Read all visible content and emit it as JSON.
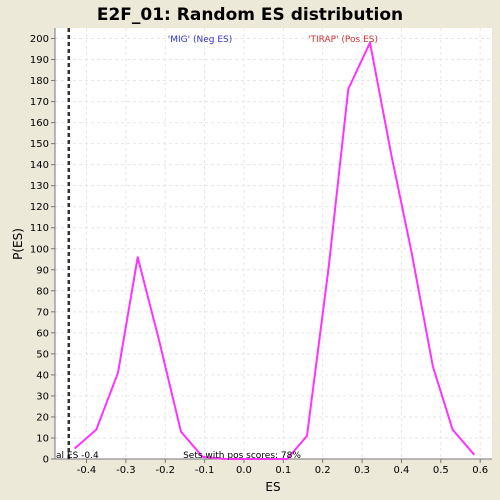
{
  "chart_data": {
    "type": "line",
    "title": "E2F_01: Random ES distribution",
    "xlabel": "ES",
    "ylabel": "P(ES)",
    "xlim": [
      -0.48,
      0.63
    ],
    "ylim": [
      0,
      205
    ],
    "grid": true,
    "x_ticks": [
      -0.4,
      -0.3,
      -0.2,
      -0.1,
      0.0,
      0.1,
      0.2,
      0.3,
      0.4,
      0.5,
      0.6
    ],
    "x_tick_labels": [
      "-0.4",
      "-0.3",
      "-0.2",
      "-0.1",
      "0.0",
      "0.1",
      "0.2",
      "0.3",
      "0.4",
      "0.5",
      "0.6"
    ],
    "y_ticks": [
      0,
      10,
      20,
      30,
      40,
      50,
      60,
      70,
      80,
      90,
      100,
      110,
      120,
      130,
      140,
      150,
      160,
      170,
      180,
      190,
      200
    ],
    "y_tick_labels": [
      "0",
      "10",
      "20",
      "30",
      "40",
      "50",
      "60",
      "70",
      "80",
      "90",
      "100",
      "110",
      "120",
      "130",
      "140",
      "150",
      "160",
      "170",
      "180",
      "190",
      "200"
    ],
    "series": [
      {
        "color": "#ff33ff",
        "x": [
          -0.43,
          -0.375,
          -0.32,
          -0.27,
          -0.215,
          -0.16,
          -0.105,
          -0.05,
          0.0,
          0.05,
          0.11,
          0.16,
          0.215,
          0.265,
          0.32,
          0.375,
          0.425,
          0.48,
          0.53,
          0.585
        ],
        "y": [
          5,
          14,
          41,
          96,
          56,
          13,
          1,
          0,
          0,
          0,
          0,
          11,
          91,
          176,
          198,
          144,
          99,
          44,
          14,
          2
        ]
      }
    ],
    "reference_line": {
      "x": -0.445,
      "style": "dashed",
      "color": "#333333"
    },
    "annotations": {
      "neg_label": "'MIG' (Neg ES)",
      "neg_color": "#3333cc",
      "pos_label": "'TIRAP' (Pos ES)",
      "pos_color": "#cc3333",
      "ref_text": "al ES -0.4",
      "sets_text": "Sets with pos scores: 78%"
    }
  }
}
